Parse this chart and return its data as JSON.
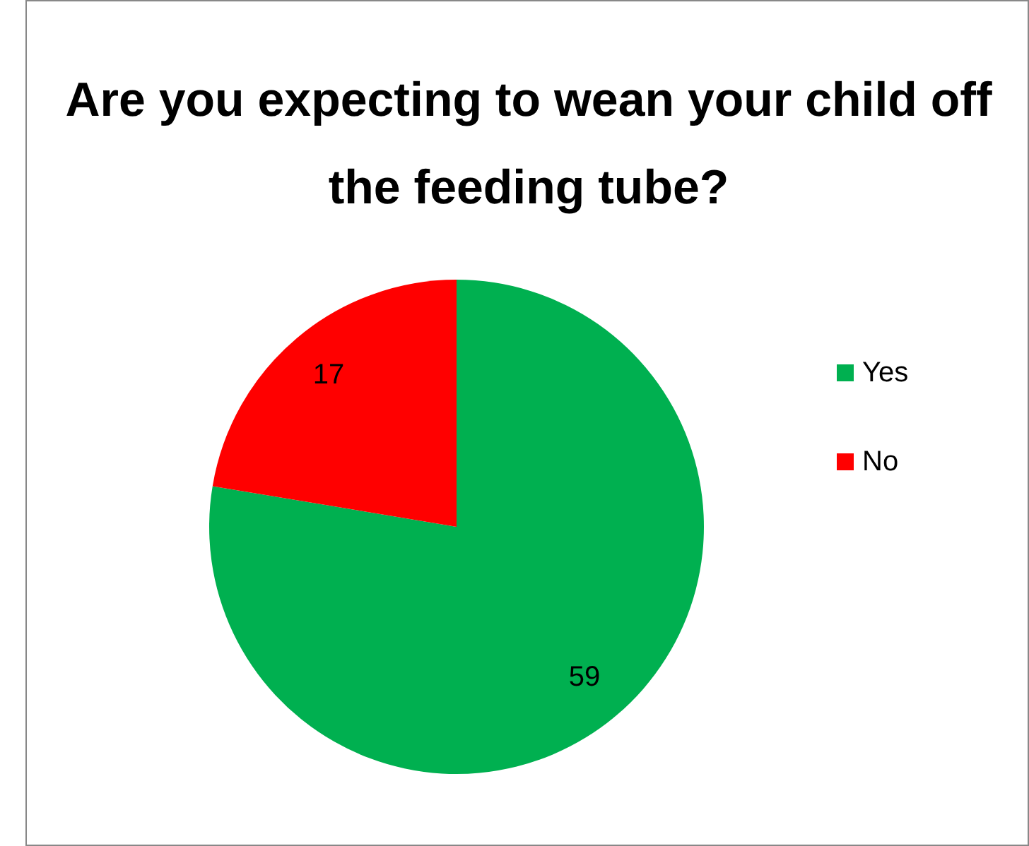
{
  "chart_data": {
    "type": "pie",
    "title": "Are you expecting to wean your child off the feeding tube?",
    "categories": [
      "Yes",
      "No"
    ],
    "values": [
      59,
      17
    ],
    "colors": [
      "#00b050",
      "#ff0000"
    ],
    "data_labels": true,
    "legend": "right"
  }
}
